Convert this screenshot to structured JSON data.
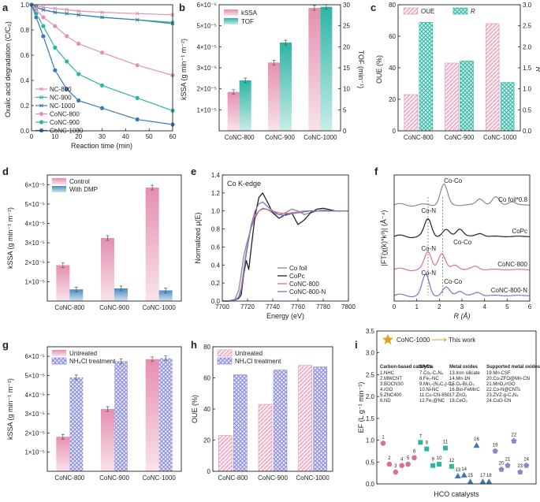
{
  "chart_data": [
    {
      "panel": "a",
      "type": "line",
      "xlabel": "Reaction time (min)",
      "ylabel": "Oxalic acid degradation (C/C₀)",
      "xlim": [
        0,
        60
      ],
      "ylim": [
        0,
        1.0
      ],
      "xticks": [
        "0",
        "10",
        "20",
        "30",
        "40",
        "50",
        "60"
      ],
      "yticks": [
        "0.0",
        "0.2",
        "0.4",
        "0.6",
        "0.8",
        "1.0"
      ],
      "x": [
        0,
        2,
        5,
        10,
        15,
        20,
        30,
        45,
        60
      ],
      "series": [
        {
          "name": "NC-800",
          "color": "#e58fb0",
          "marker": "x",
          "values": [
            1.0,
            0.99,
            0.98,
            0.97,
            0.96,
            0.95,
            0.94,
            0.93,
            0.92
          ]
        },
        {
          "name": "NC-900",
          "color": "#2bb5a5",
          "marker": "x",
          "values": [
            1.0,
            0.98,
            0.96,
            0.94,
            0.93,
            0.92,
            0.9,
            0.88,
            0.86
          ]
        },
        {
          "name": "NC-1000",
          "color": "#3a78b5",
          "marker": "x",
          "values": [
            1.0,
            0.98,
            0.96,
            0.94,
            0.93,
            0.92,
            0.9,
            0.88,
            0.85
          ]
        },
        {
          "name": "CoNC-800",
          "color": "#e58fb0",
          "marker": "o",
          "values": [
            1.0,
            0.96,
            0.9,
            0.83,
            0.75,
            0.69,
            0.62,
            0.52,
            0.44
          ]
        },
        {
          "name": "CoNC-900",
          "color": "#2bb5a5",
          "marker": "o",
          "values": [
            1.0,
            0.93,
            0.83,
            0.66,
            0.55,
            0.45,
            0.36,
            0.26,
            0.16
          ]
        },
        {
          "name": "CoNC-1000",
          "color": "#3a78b5",
          "marker": "o",
          "values": [
            1.0,
            0.9,
            0.75,
            0.48,
            0.33,
            0.24,
            0.18,
            0.09,
            0.05
          ]
        }
      ]
    },
    {
      "panel": "b",
      "type": "bar",
      "categories": [
        "CoNC-800",
        "CoNC-900",
        "CoNC-1000"
      ],
      "ylabel": "kSSA (g min⁻¹ m⁻²)",
      "y2label": "TOF (min⁻¹)",
      "ylim": [
        0,
        6e-05
      ],
      "y2lim": [
        0,
        30
      ],
      "yticks": [
        "1×10⁻⁵",
        "2×10⁻⁵",
        "3×10⁻⁵",
        "4×10⁻⁵",
        "5×10⁻⁵",
        "6×10⁻⁵"
      ],
      "y2ticks": [
        "0",
        "5",
        "10",
        "15",
        "20",
        "25",
        "30"
      ],
      "series": [
        {
          "name": "kSSA",
          "color": "#e58fb0",
          "axis": "left",
          "values": [
            1.85e-05,
            3.25e-05,
            5.85e-05
          ]
        },
        {
          "name": "TOF",
          "color": "#2bb5a5",
          "axis": "right",
          "values": [
            12,
            21,
            29.5
          ]
        }
      ]
    },
    {
      "panel": "c",
      "type": "bar",
      "categories": [
        "CoNC-800",
        "CoNC-900",
        "CoNC-1000"
      ],
      "ylabel": "OUE (%)",
      "y2label": "R",
      "ylim": [
        0,
        80
      ],
      "y2lim": [
        0,
        3.0
      ],
      "yticks": [
        "0",
        "20",
        "40",
        "60",
        "80"
      ],
      "y2ticks": [
        "0.0",
        "0.5",
        "1.0",
        "1.5",
        "2.0",
        "2.5",
        "3.0"
      ],
      "series": [
        {
          "name": "OUE",
          "color": "#e58fb0",
          "axis": "left",
          "values": [
            23,
            43,
            68
          ]
        },
        {
          "name": "R",
          "color": "#2bb5a5",
          "axis": "right",
          "values": [
            2.58,
            1.66,
            1.15
          ]
        }
      ]
    },
    {
      "panel": "d",
      "type": "bar",
      "categories": [
        "CoNC-800",
        "CoNC-900",
        "CoNC-1000"
      ],
      "ylabel": "kSSA (g min⁻¹ m⁻²)",
      "ylim": [
        0,
        6.5e-05
      ],
      "yticks": [
        "1×10⁻⁵",
        "2×10⁻⁵",
        "3×10⁻⁵",
        "4×10⁻⁵",
        "5×10⁻⁵",
        "6×10⁻⁵"
      ],
      "series": [
        {
          "name": "Control",
          "color": "#e58fb0",
          "values": [
            1.85e-05,
            3.25e-05,
            5.85e-05
          ]
        },
        {
          "name": "With DMP",
          "color": "#4a8cc2",
          "values": [
            6e-06,
            6.5e-06,
            5.5e-06
          ]
        }
      ]
    },
    {
      "panel": "e",
      "type": "line",
      "title": "Co K-edge",
      "xlabel": "Energy (eV)",
      "ylabel": "Normalized μ(E)",
      "xlim": [
        7700,
        7800
      ],
      "ylim": [
        0,
        1.4
      ],
      "xticks": [
        "7700",
        "7720",
        "7740",
        "7760",
        "7780",
        "7800"
      ],
      "yticks": [
        "0.0",
        "0.2",
        "0.4",
        "0.6",
        "0.8",
        "1.0",
        "1.2",
        "1.4"
      ],
      "x": [
        7700,
        7705,
        7710,
        7713,
        7715,
        7717,
        7719,
        7721,
        7723,
        7726,
        7729,
        7732,
        7735,
        7740,
        7745,
        7750,
        7755,
        7760,
        7765,
        7770,
        7775,
        7780,
        7790,
        7800
      ],
      "series": [
        {
          "name": "Co foil",
          "color": "#8a8a8a",
          "values": [
            0.0,
            0.0,
            0.02,
            0.12,
            0.3,
            0.5,
            0.62,
            0.72,
            0.82,
            0.92,
            1.0,
            1.03,
            1.02,
            0.98,
            0.96,
            0.98,
            1.02,
            1.0,
            0.96,
            0.98,
            1.0,
            1.01,
            1.0,
            1.0
          ]
        },
        {
          "name": "CoPc",
          "color": "#222222",
          "values": [
            0.0,
            0.0,
            0.01,
            0.03,
            0.07,
            0.3,
            0.45,
            0.35,
            0.6,
            0.95,
            1.15,
            1.2,
            1.12,
            0.98,
            0.92,
            0.96,
            0.98,
            0.85,
            0.9,
            0.98,
            1.02,
            1.03,
            1.0,
            1.0
          ]
        },
        {
          "name": "CoNC-800",
          "color": "#e0708f",
          "values": [
            0.0,
            0.0,
            0.01,
            0.05,
            0.15,
            0.35,
            0.55,
            0.7,
            0.85,
            0.95,
            1.0,
            1.02,
            1.02,
            1.0,
            0.98,
            0.97,
            0.98,
            0.99,
            1.0,
            1.0,
            1.0,
            1.0,
            1.0,
            1.0
          ]
        },
        {
          "name": "CoNC-800-N",
          "color": "#7777cc",
          "values": [
            0.0,
            0.0,
            0.01,
            0.04,
            0.12,
            0.32,
            0.52,
            0.68,
            0.85,
            1.0,
            1.08,
            1.1,
            1.06,
            1.0,
            0.96,
            0.95,
            0.97,
            0.98,
            0.99,
            1.0,
            1.0,
            1.0,
            1.0,
            1.0
          ]
        }
      ]
    },
    {
      "panel": "f",
      "type": "line",
      "xlabel": "R (Å)",
      "ylabel": "|FT(χ(k)*k³)| (Å⁻⁴)",
      "xlim": [
        0,
        6
      ],
      "xticks": [
        "0",
        "1",
        "2",
        "3",
        "4",
        "5",
        "6"
      ],
      "series_labels": [
        "Co foil*0.8",
        "CoPc",
        "CoNC-800",
        "CoNC-800-N"
      ],
      "peak_labels": [
        "Co-Co",
        "Co-N",
        "Co-N",
        "Co-Co",
        "Co-N",
        "Co-Co"
      ]
    },
    {
      "panel": "g",
      "type": "bar",
      "categories": [
        "CoNC-800",
        "CoNC-900",
        "CoNC-1000"
      ],
      "ylabel": "kSSA (g min⁻¹ m⁻²)",
      "ylim": [
        0,
        6.5e-05
      ],
      "yticks": [
        "1×10⁻⁵",
        "2×10⁻⁵",
        "3×10⁻⁵",
        "4×10⁻⁵",
        "5×10⁻⁵",
        "6×10⁻⁵"
      ],
      "series": [
        {
          "name": "Untreated",
          "color": "#e58fb0",
          "values": [
            1.8e-05,
            3.25e-05,
            5.85e-05
          ]
        },
        {
          "name": "NH₄Cl treatment",
          "color": "#8888dd",
          "values": [
            4.9e-05,
            5.75e-05,
            5.9e-05
          ]
        }
      ]
    },
    {
      "panel": "h",
      "type": "bar",
      "categories": [
        "CoNC-800",
        "CoNC-900",
        "CoNC-1000"
      ],
      "ylabel": "OUE (%)",
      "ylim": [
        0,
        80
      ],
      "yticks": [
        "0",
        "20",
        "40",
        "60",
        "80"
      ],
      "series": [
        {
          "name": "Untreated",
          "color": "#e58fb0",
          "values": [
            23,
            43,
            68
          ]
        },
        {
          "name": "NH₄Cl treatment",
          "color": "#8888dd",
          "values": [
            62,
            65,
            67
          ]
        }
      ]
    },
    {
      "panel": "i",
      "type": "scatter",
      "xlabel": "HCO catalysts",
      "ylabel": "EF (L g⁻¹ min⁻¹)",
      "ylim": [
        0,
        3.5
      ],
      "yticks": [
        "0.0",
        "0.5",
        "1.0",
        "1.5",
        "2.0",
        "2.5",
        "3.0",
        "3.5"
      ],
      "highlight": {
        "label": "CoNC-1000",
        "note": "This work",
        "value": 3.3
      },
      "groups": [
        {
          "name": "Carbon-based catalysts",
          "color": "#d87090",
          "marker": "circle",
          "items": [
            "1.NHC",
            "2.MWCNT",
            "3.BOCNS0",
            "4.rGO",
            "5.ZNC400",
            "6.ND"
          ],
          "ids": [
            1,
            2,
            3,
            4,
            5,
            6
          ],
          "values": [
            0.93,
            0.45,
            0.27,
            0.42,
            0.45,
            0.6
          ]
        },
        {
          "name": "SACs",
          "color": "#2bb5a5",
          "marker": "square",
          "items": [
            "7.Co₁-C₃N₄",
            "8.Fe₁-NC",
            "9.Mn₁-(N₂C₂)-C₄",
            "10.Ni-NC",
            "11.Cu-CN-850",
            "12.Fe₁@NC"
          ],
          "ids": [
            7,
            8,
            9,
            10,
            11,
            12
          ],
          "values": [
            0.95,
            0.8,
            0.42,
            0.45,
            0.82,
            0.4
          ]
        },
        {
          "name": "Metal oxides",
          "color": "#3a78b5",
          "marker": "triangle",
          "items": [
            "13.Iron silicate",
            "14.Mn-1N",
            "15.Oᵥ-Bi₂O₃",
            "16.Bio-FeMnC",
            "17.ZnO₂",
            "18.CeO₂"
          ],
          "ids": [
            13,
            14,
            15,
            16,
            17,
            18
          ],
          "values": [
            0.18,
            0.2,
            0.05,
            0.88,
            0.05,
            0.05
          ]
        },
        {
          "name": "Supported metal oxides",
          "color": "#8888cc",
          "marker": "pentagon",
          "items": [
            "19.Mn-CSF",
            "20.Co-ZFO@Mn-CN",
            "21.MnO₂/rGO",
            "22.Co-N@CNTs",
            "23.ZVZ-g-C₃N₄",
            "24.CuO-CN"
          ],
          "ids": [
            19,
            20,
            21,
            22,
            23,
            24
          ],
          "values": [
            0.75,
            0.33,
            0.42,
            0.98,
            0.27,
            0.42
          ]
        }
      ]
    }
  ]
}
